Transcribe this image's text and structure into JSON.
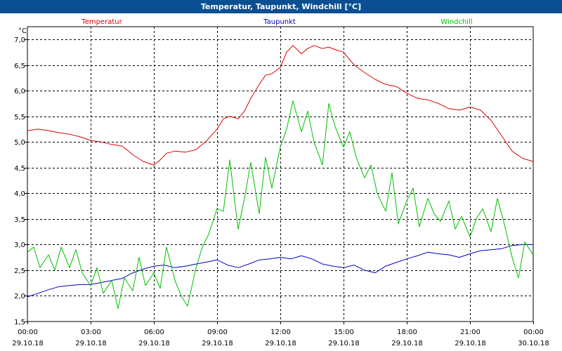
{
  "window": {
    "title": "Temperatur, Taupunkt, Windchill [°C]"
  },
  "chart_data": {
    "type": "line",
    "title": "Temperatur, Taupunkt, Windchill [°C]",
    "ylabel": "°C",
    "xlabel": "",
    "ylim": [
      1.5,
      7.0
    ],
    "y_ticks": [
      "1,5",
      "2,0",
      "2,5",
      "3,0",
      "3,5",
      "4,0",
      "4,5",
      "5,0",
      "5,5",
      "6,0",
      "6,5",
      "7,0"
    ],
    "x_ticks": [
      {
        "time": "00:00",
        "date": "29.10.18"
      },
      {
        "time": "03:00",
        "date": "29.10.18"
      },
      {
        "time": "06:00",
        "date": "29.10.18"
      },
      {
        "time": "09:00",
        "date": "29.10.18"
      },
      {
        "time": "12:00",
        "date": "29.10.18"
      },
      {
        "time": "15:00",
        "date": "29.10.18"
      },
      {
        "time": "18:00",
        "date": "29.10.18"
      },
      {
        "time": "21:00",
        "date": "29.10.18"
      },
      {
        "time": "00:00",
        "date": "30.10.18"
      }
    ],
    "x_unit": "hours since 29.10.18 00:00",
    "xlim": [
      0,
      24
    ],
    "grid": true,
    "colors": {
      "temperatur": "#e00000",
      "taupunkt": "#0000c0",
      "windchill": "#00c000",
      "grid": "#000000",
      "title_bar": "#0a4f92"
    },
    "series": [
      {
        "name": "Temperatur",
        "color": "#e00000",
        "x": [
          0,
          0.5,
          1,
          1.5,
          2,
          2.5,
          3,
          3.5,
          4,
          4.5,
          5,
          5.5,
          6,
          6.3,
          6.6,
          7,
          7.5,
          8,
          8.5,
          9,
          9.3,
          9.6,
          10,
          10.3,
          10.6,
          11,
          11.3,
          11.6,
          12,
          12.3,
          12.6,
          13,
          13.3,
          13.6,
          14,
          14.3,
          14.6,
          15,
          15.5,
          16,
          16.5,
          17,
          17.5,
          18,
          18.5,
          19,
          19.5,
          20,
          20.5,
          21,
          21.5,
          22,
          22.5,
          23,
          23.5,
          24
        ],
        "y": [
          5.22,
          5.25,
          5.22,
          5.18,
          5.15,
          5.1,
          5.03,
          5.0,
          4.95,
          4.92,
          4.75,
          4.62,
          4.55,
          4.65,
          4.78,
          4.82,
          4.8,
          4.85,
          5.02,
          5.25,
          5.45,
          5.5,
          5.45,
          5.6,
          5.85,
          6.12,
          6.3,
          6.33,
          6.45,
          6.75,
          6.88,
          6.72,
          6.82,
          6.88,
          6.82,
          6.85,
          6.8,
          6.75,
          6.5,
          6.35,
          6.22,
          6.12,
          6.08,
          5.95,
          5.85,
          5.82,
          5.75,
          5.65,
          5.62,
          5.68,
          5.62,
          5.42,
          5.12,
          4.82,
          4.68,
          4.62
        ]
      },
      {
        "name": "Taupunkt",
        "color": "#0000c0",
        "x": [
          0,
          0.5,
          1,
          1.5,
          2,
          2.5,
          3,
          3.5,
          4,
          4.5,
          5,
          5.5,
          6,
          6.5,
          7,
          7.5,
          8,
          8.5,
          9,
          9.5,
          10,
          10.5,
          11,
          11.5,
          12,
          12.5,
          13,
          13.5,
          14,
          14.5,
          15,
          15.5,
          16,
          16.5,
          17,
          17.5,
          18,
          18.5,
          19,
          19.5,
          20,
          20.5,
          21,
          21.5,
          22,
          22.5,
          23,
          23.5,
          24
        ],
        "y": [
          1.98,
          2.05,
          2.12,
          2.18,
          2.2,
          2.22,
          2.22,
          2.26,
          2.3,
          2.34,
          2.45,
          2.52,
          2.58,
          2.6,
          2.55,
          2.58,
          2.62,
          2.66,
          2.7,
          2.6,
          2.55,
          2.62,
          2.7,
          2.72,
          2.75,
          2.72,
          2.78,
          2.72,
          2.62,
          2.58,
          2.55,
          2.6,
          2.5,
          2.45,
          2.58,
          2.65,
          2.72,
          2.78,
          2.85,
          2.82,
          2.8,
          2.75,
          2.82,
          2.88,
          2.9,
          2.92,
          2.98,
          3.0,
          3.0
        ]
      },
      {
        "name": "Windchill",
        "color": "#00c000",
        "x": [
          0,
          0.3,
          0.6,
          1,
          1.3,
          1.6,
          2,
          2.3,
          2.6,
          3,
          3.3,
          3.6,
          4,
          4.3,
          4.6,
          5,
          5.3,
          5.6,
          6,
          6.3,
          6.6,
          7,
          7.3,
          7.6,
          8,
          8.3,
          8.6,
          9,
          9.3,
          9.6,
          10,
          10.3,
          10.6,
          11,
          11.3,
          11.6,
          12,
          12.3,
          12.6,
          13,
          13.3,
          13.6,
          14,
          14.3,
          14.6,
          15,
          15.3,
          15.6,
          16,
          16.3,
          16.6,
          17,
          17.3,
          17.6,
          18,
          18.3,
          18.6,
          19,
          19.3,
          19.6,
          20,
          20.3,
          20.6,
          21,
          21.3,
          21.6,
          22,
          22.3,
          22.6,
          23,
          23.3,
          23.6,
          24
        ],
        "y": [
          2.85,
          2.95,
          2.55,
          2.8,
          2.5,
          2.95,
          2.55,
          2.9,
          2.45,
          2.2,
          2.55,
          2.05,
          2.3,
          1.75,
          2.35,
          2.1,
          2.75,
          2.2,
          2.45,
          2.15,
          2.95,
          2.3,
          2.0,
          1.8,
          2.55,
          2.95,
          3.2,
          3.7,
          3.65,
          4.65,
          3.3,
          3.9,
          4.6,
          3.6,
          4.7,
          4.1,
          4.9,
          5.25,
          5.8,
          5.2,
          5.6,
          5.0,
          4.55,
          5.75,
          5.3,
          4.9,
          5.2,
          4.7,
          4.3,
          4.55,
          4.0,
          3.65,
          4.4,
          3.4,
          3.85,
          4.1,
          3.35,
          3.9,
          3.6,
          3.45,
          3.85,
          3.3,
          3.55,
          3.15,
          3.5,
          3.7,
          3.25,
          3.9,
          3.45,
          2.75,
          2.35,
          3.05,
          2.8
        ]
      }
    ]
  }
}
